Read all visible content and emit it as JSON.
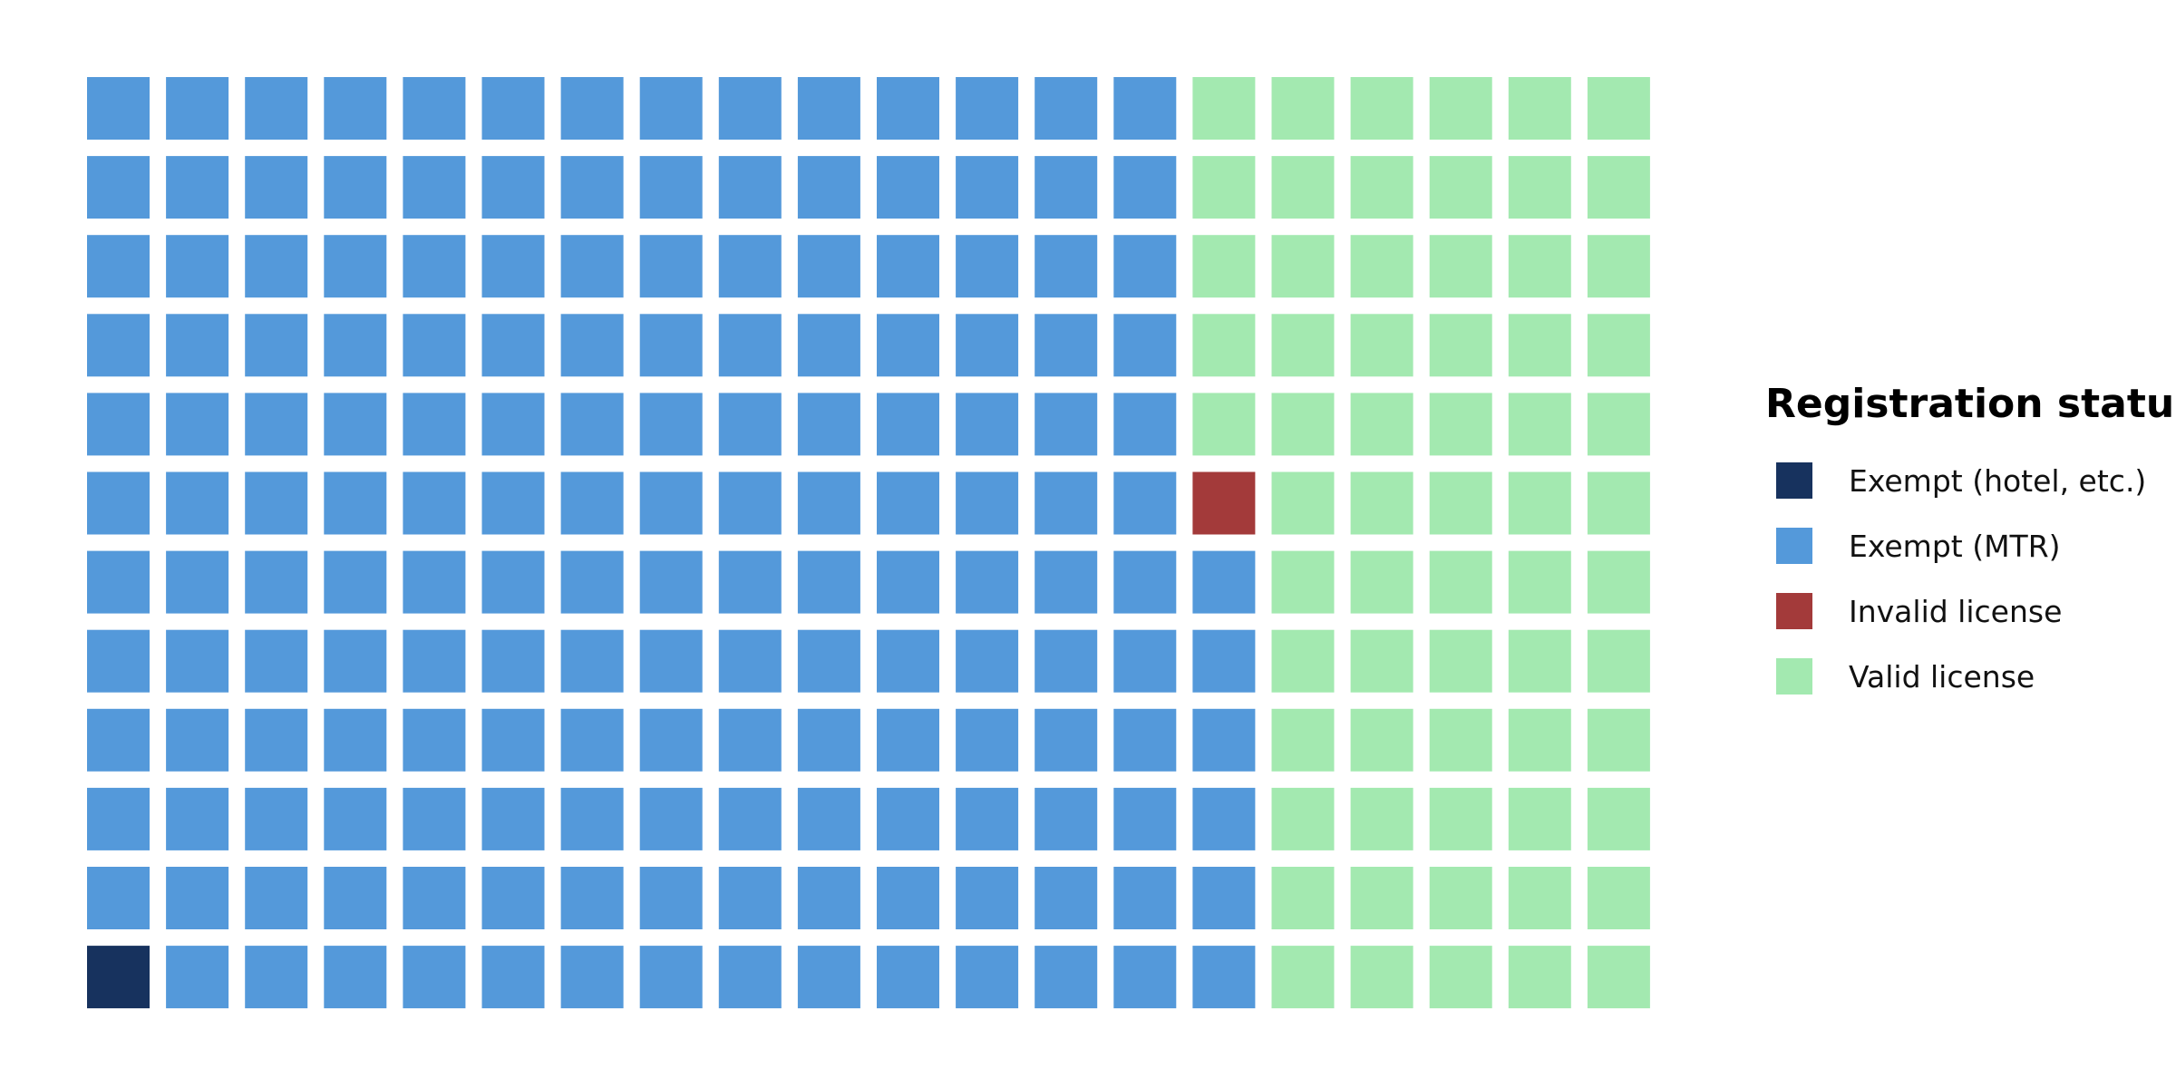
{
  "chart_data": {
    "type": "waffle",
    "title": "",
    "legend": {
      "title": "Registration status",
      "placement": "right",
      "items": [
        {
          "key": "exempt_hotel",
          "label": "Exempt (hotel, etc.)",
          "color": "#17325e"
        },
        {
          "key": "exempt_mtr",
          "label": "Exempt (MTR)",
          "color": "#5499da"
        },
        {
          "key": "invalid",
          "label": "Invalid license",
          "color": "#a33a3a"
        },
        {
          "key": "valid",
          "label": "Valid license",
          "color": "#a3e9b0"
        }
      ]
    },
    "rows": 12,
    "columns": 20,
    "fill_order": "column-major from bottom-left",
    "categories": [
      "Exempt (hotel, etc.)",
      "Exempt (MTR)",
      "Invalid license",
      "Valid license"
    ],
    "values": [
      1,
      173,
      1,
      65
    ],
    "total_squares": 240
  }
}
